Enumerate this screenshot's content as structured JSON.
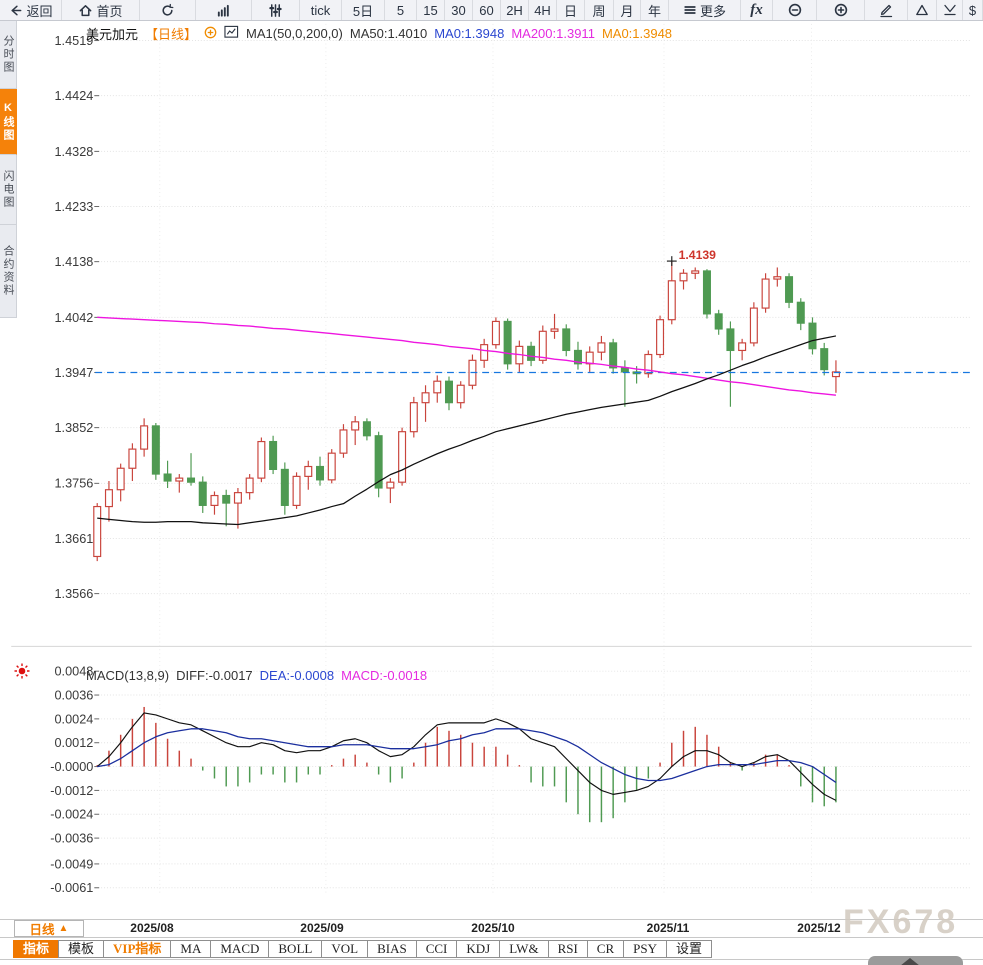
{
  "toolbar_top": {
    "items": [
      {
        "name": "back",
        "icon": "back-arrow-icon",
        "label": "返回"
      },
      {
        "name": "home",
        "icon": "home-icon",
        "label": "首页"
      },
      {
        "name": "refresh",
        "icon": "refresh-icon",
        "label": ""
      },
      {
        "name": "chart-type-bar",
        "icon": "bar-chart-icon",
        "label": ""
      },
      {
        "name": "chart-type-candle",
        "icon": "sliders-icon",
        "label": ""
      },
      {
        "name": "tick",
        "label": "tick"
      },
      {
        "name": "5d",
        "label": "5日"
      },
      {
        "name": "m5",
        "label": "5"
      },
      {
        "name": "m15",
        "label": "15"
      },
      {
        "name": "m30",
        "label": "30"
      },
      {
        "name": "m60",
        "label": "60"
      },
      {
        "name": "h2",
        "label": "2H"
      },
      {
        "name": "h4",
        "label": "4H"
      },
      {
        "name": "day",
        "label": "日"
      },
      {
        "name": "week",
        "label": "周"
      },
      {
        "name": "month",
        "label": "月"
      },
      {
        "name": "year",
        "label": "年"
      },
      {
        "name": "more",
        "icon": "menu-icon",
        "label": "更多"
      },
      {
        "name": "fx",
        "label": "fx"
      },
      {
        "name": "zoom-out",
        "icon": "zoom-out-icon",
        "label": ""
      },
      {
        "name": "zoom-in",
        "icon": "zoom-in-icon",
        "label": ""
      },
      {
        "name": "draw",
        "icon": "pencil-icon",
        "label": ""
      },
      {
        "name": "triangle-up",
        "icon": "triangle-up-icon",
        "label": ""
      },
      {
        "name": "chevron-down",
        "icon": "chevron-down-icon",
        "label": ""
      },
      {
        "name": "dollar",
        "label": "$"
      }
    ]
  },
  "sidebar_left": {
    "items": [
      {
        "label": "分时图",
        "active": false
      },
      {
        "label": "K线图",
        "active": true
      },
      {
        "label": "闪电图",
        "active": false
      },
      {
        "label": "合约资料",
        "active": false
      }
    ]
  },
  "chart_header": {
    "symbol": "美元加元",
    "period": "【日线】",
    "ma_settings": "MA1(50,0,200,0)",
    "ma50": "MA50:1.4010",
    "ma0_blue": "MA0:1.3948",
    "ma200": "MA200:1.3911",
    "ma0_orange": "MA0:1.3948"
  },
  "macd_header": {
    "title": "MACD(13,8,9)",
    "diff": "DIFF:-0.0017",
    "dea": "DEA:-0.0008",
    "macd": "MACD:-0.0018"
  },
  "period_selector": {
    "label": "日线",
    "arrow": "▲"
  },
  "bottom_tabs": [
    {
      "label": "指标",
      "style": "active"
    },
    {
      "label": "模板",
      "style": ""
    },
    {
      "label": "VIP指标",
      "style": "vip"
    },
    {
      "label": "MA",
      "style": ""
    },
    {
      "label": "MACD",
      "style": ""
    },
    {
      "label": "BOLL",
      "style": ""
    },
    {
      "label": "VOL",
      "style": ""
    },
    {
      "label": "BIAS",
      "style": ""
    },
    {
      "label": "CCI",
      "style": ""
    },
    {
      "label": "KDJ",
      "style": ""
    },
    {
      "label": "LW&",
      "style": ""
    },
    {
      "label": "RSI",
      "style": ""
    },
    {
      "label": "CR",
      "style": ""
    },
    {
      "label": "PSY",
      "style": ""
    },
    {
      "label": "设置",
      "style": ""
    }
  ],
  "watermark": "FX678",
  "misc_icons": {
    "left_indicator": "red-sun-icon",
    "scroll_button": "scroll-up-arrow-icon"
  },
  "colors": {
    "up_candle": "#c9443c",
    "down_candle": "#4f9a52",
    "ma50": "#111111",
    "ma200": "#ee15e0",
    "diff_line": "#111111",
    "dea_line": "#1b2f9e",
    "price_dashed_line": "#1777e0",
    "accent_orange": "#f07c00",
    "high_label": "#ce352c",
    "watermark": "#d2cabf"
  },
  "chart_data": [
    {
      "type": "candlestick",
      "title": "美元加元 日线",
      "y_ticks": [
        1.4519,
        1.4424,
        1.4328,
        1.4233,
        1.4138,
        1.4042,
        1.3947,
        1.3852,
        1.3756,
        1.3661,
        1.3566
      ],
      "x_labels": [
        "2025/08",
        "2025/09",
        "2025/10",
        "2025/11",
        "2025/12"
      ],
      "price_line": 1.3947,
      "high_annotation": {
        "index": 49,
        "price": 1.4139,
        "label": "1.4139"
      },
      "candles": [
        [
          1.363,
          1.3722,
          1.3622,
          1.3716
        ],
        [
          1.3716,
          1.376,
          1.369,
          1.3745
        ],
        [
          1.3745,
          1.379,
          1.3725,
          1.3782
        ],
        [
          1.3782,
          1.3825,
          1.376,
          1.3815
        ],
        [
          1.3815,
          1.3868,
          1.3802,
          1.3855
        ],
        [
          1.3855,
          1.386,
          1.3762,
          1.3772
        ],
        [
          1.3772,
          1.3795,
          1.3748,
          1.376
        ],
        [
          1.376,
          1.3772,
          1.374,
          1.3765
        ],
        [
          1.3765,
          1.3808,
          1.3752,
          1.3758
        ],
        [
          1.3758,
          1.3768,
          1.3705,
          1.3718
        ],
        [
          1.3718,
          1.3742,
          1.3702,
          1.3735
        ],
        [
          1.3735,
          1.3745,
          1.3682,
          1.3722
        ],
        [
          1.3722,
          1.3748,
          1.3678,
          1.374
        ],
        [
          1.374,
          1.3772,
          1.3728,
          1.3765
        ],
        [
          1.3765,
          1.3835,
          1.3758,
          1.3828
        ],
        [
          1.3828,
          1.3838,
          1.3772,
          1.378
        ],
        [
          1.378,
          1.3792,
          1.3702,
          1.3718
        ],
        [
          1.3718,
          1.3775,
          1.3712,
          1.3768
        ],
        [
          1.3768,
          1.3795,
          1.3745,
          1.3785
        ],
        [
          1.3785,
          1.3802,
          1.3752,
          1.3762
        ],
        [
          1.3762,
          1.3815,
          1.3756,
          1.3808
        ],
        [
          1.3808,
          1.3858,
          1.38,
          1.3848
        ],
        [
          1.3848,
          1.3872,
          1.3822,
          1.3862
        ],
        [
          1.3862,
          1.3868,
          1.383,
          1.3838
        ],
        [
          1.3838,
          1.3845,
          1.3732,
          1.3748
        ],
        [
          1.3748,
          1.3765,
          1.3722,
          1.3758
        ],
        [
          1.3758,
          1.3852,
          1.3752,
          1.3845
        ],
        [
          1.3845,
          1.3905,
          1.3835,
          1.3895
        ],
        [
          1.3895,
          1.3925,
          1.3862,
          1.3912
        ],
        [
          1.3912,
          1.3942,
          1.3895,
          1.3932
        ],
        [
          1.3932,
          1.394,
          1.3882,
          1.3895
        ],
        [
          1.3895,
          1.3932,
          1.3885,
          1.3925
        ],
        [
          1.3925,
          1.3978,
          1.3918,
          1.3968
        ],
        [
          1.3968,
          1.4005,
          1.3955,
          1.3995
        ],
        [
          1.3995,
          1.4042,
          1.3988,
          1.4035
        ],
        [
          1.4035,
          1.404,
          1.3952,
          1.3962
        ],
        [
          1.3962,
          1.4002,
          1.3948,
          1.3992
        ],
        [
          1.3992,
          1.4,
          1.3958,
          1.3968
        ],
        [
          1.3968,
          1.4028,
          1.3962,
          1.4018
        ],
        [
          1.4018,
          1.4048,
          1.4005,
          1.4022
        ],
        [
          1.4022,
          1.403,
          1.3975,
          1.3985
        ],
        [
          1.3985,
          1.4,
          1.3952,
          1.3962
        ],
        [
          1.3962,
          1.3992,
          1.3948,
          1.3982
        ],
        [
          1.3982,
          1.401,
          1.3968,
          1.3998
        ],
        [
          1.3998,
          1.4005,
          1.3945,
          1.3955
        ],
        [
          1.3955,
          1.3968,
          1.3888,
          1.3948
        ],
        [
          1.3948,
          1.3958,
          1.3928,
          1.3945
        ],
        [
          1.3945,
          1.3985,
          1.3938,
          1.3978
        ],
        [
          1.3978,
          1.4045,
          1.3972,
          1.4038
        ],
        [
          1.4038,
          1.4139,
          1.403,
          1.4105
        ],
        [
          1.4105,
          1.4125,
          1.409,
          1.4118
        ],
        [
          1.4118,
          1.4128,
          1.4108,
          1.4122
        ],
        [
          1.4122,
          1.4125,
          1.404,
          1.4048
        ],
        [
          1.4048,
          1.4055,
          1.4012,
          1.4022
        ],
        [
          1.4022,
          1.4035,
          1.3888,
          1.3985
        ],
        [
          1.3985,
          1.4005,
          1.3968,
          1.3998
        ],
        [
          1.3998,
          1.4068,
          1.3992,
          1.4058
        ],
        [
          1.4058,
          1.4118,
          1.405,
          1.4108
        ],
        [
          1.4108,
          1.4128,
          1.4095,
          1.4112
        ],
        [
          1.4112,
          1.4118,
          1.4058,
          1.4068
        ],
        [
          1.4068,
          1.4075,
          1.402,
          1.4032
        ],
        [
          1.4032,
          1.4042,
          1.3978,
          1.3988
        ],
        [
          1.3988,
          1.3998,
          1.3942,
          1.3952
        ],
        [
          1.394,
          1.3968,
          1.3912,
          1.3948
        ]
      ],
      "ma50": [
        1.3696,
        1.3694,
        1.3692,
        1.369,
        1.3689,
        1.3689,
        1.369,
        1.369,
        1.369,
        1.3688,
        1.3687,
        1.3686,
        1.3685,
        1.3688,
        1.3691,
        1.3694,
        1.3697,
        1.37,
        1.3705,
        1.371,
        1.3716,
        1.3721,
        1.3734,
        1.3746,
        1.3759,
        1.3771,
        1.3779,
        1.3789,
        1.3798,
        1.3807,
        1.3815,
        1.3822,
        1.383,
        1.3837,
        1.3845,
        1.385,
        1.3855,
        1.386,
        1.3865,
        1.387,
        1.3875,
        1.3879,
        1.3883,
        1.3887,
        1.389,
        1.3893,
        1.3896,
        1.3899,
        1.3906,
        1.3914,
        1.3921,
        1.3928,
        1.3936,
        1.3943,
        1.3951,
        1.3959,
        1.3966,
        1.3974,
        1.3981,
        1.3988,
        1.3995,
        1.4002,
        1.4006,
        1.401
      ],
      "ma200": [
        1.4042,
        1.4041,
        1.404,
        1.4039,
        1.4038,
        1.4037,
        1.4036,
        1.4035,
        1.4034,
        1.4033,
        1.4031,
        1.403,
        1.4028,
        1.4027,
        1.4025,
        1.4023,
        1.4022,
        1.402,
        1.4018,
        1.4016,
        1.4014,
        1.4012,
        1.401,
        1.4008,
        1.4006,
        1.4004,
        1.4002,
        1.3999,
        1.3997,
        1.3995,
        1.3992,
        1.399,
        1.3988,
        1.3985,
        1.3983,
        1.398,
        1.3978,
        1.3975,
        1.3973,
        1.397,
        1.3968,
        1.3965,
        1.3963,
        1.3961,
        1.3958,
        1.3956,
        1.3953,
        1.3951,
        1.3948,
        1.3945,
        1.3943,
        1.394,
        1.3937,
        1.3934,
        1.3931,
        1.3929,
        1.3926,
        1.3923,
        1.392,
        1.3917,
        1.3915,
        1.3912,
        1.391,
        1.3908
      ]
    },
    {
      "type": "macd",
      "params": "(13,8,9)",
      "y_tick_labels": [
        "0.0048",
        "0.0036",
        "0.0024",
        "0.0012",
        "-0.0000",
        "-0.0012",
        "-0.0024",
        "-0.0036",
        "-0.0049",
        "-0.0061"
      ],
      "y_tick_values": [
        0.0048,
        0.0036,
        0.0024,
        0.0012,
        0.0,
        -0.0012,
        -0.0024,
        -0.0036,
        -0.0049,
        -0.0061
      ],
      "histogram": [
        0.0,
        0.0008,
        0.0016,
        0.0024,
        0.003,
        0.0022,
        0.0014,
        0.0008,
        0.0004,
        -0.0002,
        -0.0006,
        -0.001,
        -0.001,
        -0.0008,
        -0.0004,
        -0.0004,
        -0.0008,
        -0.0008,
        -0.0004,
        -0.0004,
        0.0,
        0.0004,
        0.0006,
        0.0002,
        -0.0004,
        -0.0008,
        -0.0006,
        0.0002,
        0.0012,
        0.002,
        0.0018,
        0.0016,
        0.0012,
        0.001,
        0.001,
        0.0006,
        0.0,
        -0.0008,
        -0.001,
        -0.001,
        -0.0018,
        -0.0024,
        -0.0028,
        -0.0028,
        -0.0026,
        -0.0018,
        -0.0012,
        -0.0006,
        0.0002,
        0.0012,
        0.0018,
        0.002,
        0.0016,
        0.001,
        0.0002,
        -0.0002,
        0.0002,
        0.0006,
        0.0006,
        0.0,
        -0.001,
        -0.0018,
        -0.002,
        -0.0018
      ],
      "diff": [
        0.0,
        0.0005,
        0.0012,
        0.002,
        0.0027,
        0.0026,
        0.0024,
        0.0022,
        0.0021,
        0.0018,
        0.0015,
        0.0012,
        0.001,
        0.001,
        0.0012,
        0.0011,
        0.0008,
        0.0007,
        0.0008,
        0.0008,
        0.001,
        0.0013,
        0.0014,
        0.0012,
        0.0008,
        0.0005,
        0.0006,
        0.001,
        0.0016,
        0.0021,
        0.0022,
        0.0022,
        0.0022,
        0.0022,
        0.0024,
        0.0022,
        0.0019,
        0.0014,
        0.0012,
        0.001,
        0.0004,
        -0.0002,
        -0.0008,
        -0.0012,
        -0.0014,
        -0.0013,
        -0.0012,
        -0.001,
        -0.0006,
        0.0,
        0.0005,
        0.0008,
        0.0008,
        0.0006,
        0.0002,
        0.0,
        0.0002,
        0.0005,
        0.0006,
        0.0003,
        -0.0003,
        -0.0009,
        -0.0014,
        -0.0017
      ],
      "dea": [
        0.0,
        0.0001,
        0.0004,
        0.0008,
        0.0012,
        0.0015,
        0.0017,
        0.0018,
        0.0019,
        0.0019,
        0.0018,
        0.0017,
        0.0015,
        0.0014,
        0.0014,
        0.0013,
        0.0012,
        0.0011,
        0.001,
        0.001,
        0.001,
        0.0011,
        0.0011,
        0.0011,
        0.001,
        0.0009,
        0.0009,
        0.0009,
        0.001,
        0.0011,
        0.0013,
        0.0014,
        0.0016,
        0.0017,
        0.0019,
        0.0019,
        0.0019,
        0.0018,
        0.0017,
        0.0015,
        0.0013,
        0.001,
        0.0006,
        0.0002,
        -0.0001,
        -0.0004,
        -0.0006,
        -0.0007,
        -0.0007,
        -0.0006,
        -0.0004,
        -0.0002,
        0.0,
        0.0001,
        0.0001,
        0.0001,
        0.0001,
        0.0002,
        0.0003,
        0.0003,
        0.0002,
        0.0,
        -0.0004,
        -0.0008
      ],
      "last": {
        "diff": -0.0017,
        "dea": -0.0008,
        "macd": -0.0018
      }
    }
  ]
}
